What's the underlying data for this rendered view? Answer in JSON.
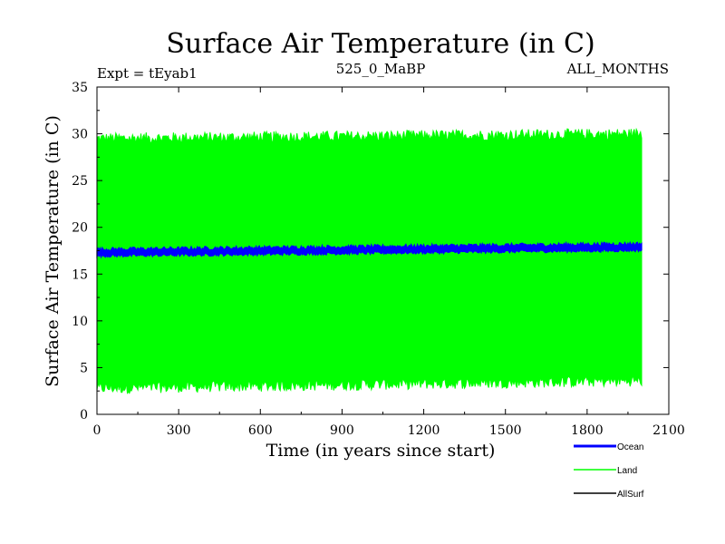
{
  "chart_data": {
    "type": "line",
    "title": "Surface Air Temperature (in C)",
    "header_left": "Expt = tEyab1",
    "header_center": "525_0_MaBP",
    "header_right": "ALL_MONTHS",
    "xlabel": "Time (in years since start)",
    "ylabel": "Surface Air Temperature (in C)",
    "xlim": [
      0,
      2100
    ],
    "ylim": [
      0,
      35
    ],
    "x_ticks": [
      0,
      300,
      600,
      900,
      1200,
      1500,
      1800,
      2100
    ],
    "y_ticks": [
      0,
      5,
      10,
      15,
      20,
      25,
      30,
      35
    ],
    "x_range_data": [
      0,
      2000
    ],
    "series": [
      {
        "name": "Land",
        "color": "#00ff00",
        "style": "seasonal-envelope",
        "upper_start": 29.5,
        "upper_end": 30.0,
        "upper_noise": 0.6,
        "lower_start": 2.8,
        "lower_end": 3.6,
        "lower_noise": 0.6
      },
      {
        "name": "Ocean",
        "color": "#0000ff",
        "style": "band",
        "start": 17.3,
        "end": 17.9,
        "halfwidth": 0.35,
        "noise": 0.2
      },
      {
        "name": "AllSurf",
        "color": "#000000",
        "style": "hidden",
        "start": 17.3,
        "end": 17.9
      }
    ],
    "legend": {
      "placement": "bottom-right",
      "entries": [
        {
          "name": "Ocean",
          "color": "#0000ff"
        },
        {
          "name": "Land",
          "color": "#00ff00"
        },
        {
          "name": "AllSurf",
          "color": "#000000"
        }
      ]
    }
  }
}
